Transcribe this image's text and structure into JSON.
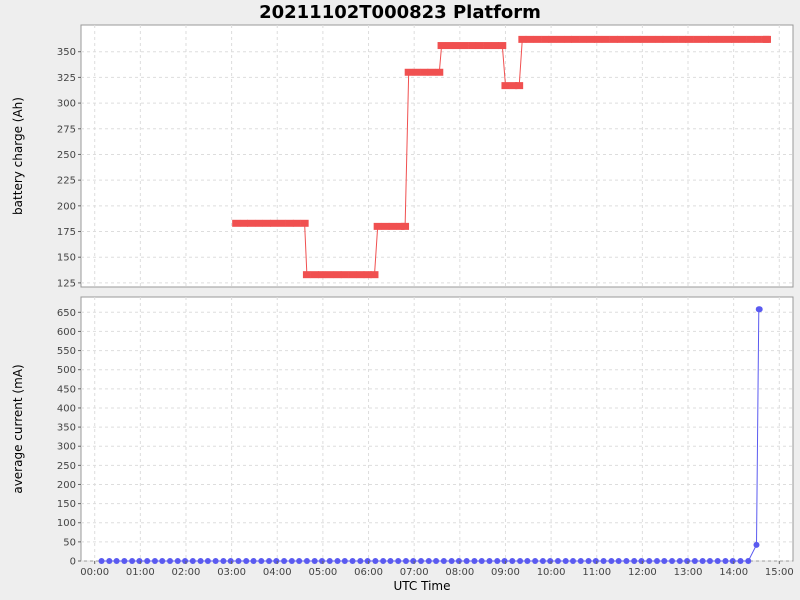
{
  "chart_data": {
    "title": "20211102T000823 Platform",
    "type": "line",
    "x_axis": {
      "label": "UTC Time",
      "unit": "hours",
      "range": [
        -0.3,
        15.3
      ],
      "ticks": [
        0,
        1,
        2,
        3,
        4,
        5,
        6,
        7,
        8,
        9,
        10,
        11,
        12,
        13,
        14,
        15
      ],
      "tick_labels": [
        "00:00",
        "01:00",
        "02:00",
        "03:00",
        "04:00",
        "05:00",
        "06:00",
        "07:00",
        "08:00",
        "09:00",
        "10:00",
        "11:00",
        "12:00",
        "13:00",
        "14:00",
        "15:00"
      ]
    },
    "grid": true,
    "panels": [
      {
        "ylabel": "battery charge (Ah)",
        "ylim": [
          121,
          376
        ],
        "yticks": [
          125,
          150,
          175,
          200,
          225,
          250,
          275,
          300,
          325,
          350
        ],
        "series": [
          {
            "color": "#f05050",
            "marker": "square",
            "points": [
              [
                3.1,
                183
              ],
              [
                3.27,
                183
              ],
              [
                3.43,
                183
              ],
              [
                3.6,
                183
              ],
              [
                3.77,
                183
              ],
              [
                3.93,
                183
              ],
              [
                4.1,
                183
              ],
              [
                4.27,
                183
              ],
              [
                4.43,
                183
              ],
              [
                4.6,
                183
              ],
              [
                4.65,
                133
              ],
              [
                4.82,
                133
              ],
              [
                4.98,
                133
              ],
              [
                5.15,
                133
              ],
              [
                5.32,
                133
              ],
              [
                5.48,
                133
              ],
              [
                5.65,
                133
              ],
              [
                5.82,
                133
              ],
              [
                5.98,
                133
              ],
              [
                6.13,
                133
              ],
              [
                6.2,
                180
              ],
              [
                6.37,
                180
              ],
              [
                6.53,
                180
              ],
              [
                6.7,
                180
              ],
              [
                6.8,
                180
              ],
              [
                6.88,
                330
              ],
              [
                7.05,
                330
              ],
              [
                7.22,
                330
              ],
              [
                7.38,
                330
              ],
              [
                7.55,
                330
              ],
              [
                7.6,
                356
              ],
              [
                7.77,
                356
              ],
              [
                7.93,
                356
              ],
              [
                8.1,
                356
              ],
              [
                8.27,
                356
              ],
              [
                8.43,
                356
              ],
              [
                8.6,
                356
              ],
              [
                8.77,
                356
              ],
              [
                8.93,
                356
              ],
              [
                9.0,
                317
              ],
              [
                9.17,
                317
              ],
              [
                9.3,
                317
              ],
              [
                9.37,
                362
              ],
              [
                9.53,
                362
              ],
              [
                9.7,
                362
              ],
              [
                9.87,
                362
              ],
              [
                10.03,
                362
              ],
              [
                10.2,
                362
              ],
              [
                10.37,
                362
              ],
              [
                10.53,
                362
              ],
              [
                10.7,
                362
              ],
              [
                10.87,
                362
              ],
              [
                11.03,
                362
              ],
              [
                11.2,
                362
              ],
              [
                11.37,
                362
              ],
              [
                11.53,
                362
              ],
              [
                11.7,
                362
              ],
              [
                11.87,
                362
              ],
              [
                12.03,
                362
              ],
              [
                12.2,
                362
              ],
              [
                12.37,
                362
              ],
              [
                12.53,
                362
              ],
              [
                12.7,
                362
              ],
              [
                12.87,
                362
              ],
              [
                13.03,
                362
              ],
              [
                13.2,
                362
              ],
              [
                13.37,
                362
              ],
              [
                13.53,
                362
              ],
              [
                13.7,
                362
              ],
              [
                13.87,
                362
              ],
              [
                14.03,
                362
              ],
              [
                14.2,
                362
              ],
              [
                14.37,
                362
              ],
              [
                14.53,
                362
              ],
              [
                14.7,
                362
              ],
              [
                14.73,
                362
              ]
            ]
          }
        ]
      },
      {
        "ylabel": "average current (mA)",
        "ylim": [
          0,
          690
        ],
        "yticks": [
          0,
          50,
          100,
          150,
          200,
          250,
          300,
          350,
          400,
          450,
          500,
          550,
          600,
          650
        ],
        "series": [
          {
            "color": "#5a5af0",
            "marker": "circle",
            "points": [
              [
                0.15,
                0
              ],
              [
                0.32,
                0
              ],
              [
                0.48,
                0
              ],
              [
                0.65,
                0
              ],
              [
                0.82,
                0
              ],
              [
                0.98,
                0
              ],
              [
                1.15,
                0
              ],
              [
                1.32,
                0
              ],
              [
                1.48,
                0
              ],
              [
                1.65,
                0
              ],
              [
                1.82,
                0
              ],
              [
                1.98,
                0
              ],
              [
                2.15,
                0
              ],
              [
                2.32,
                0
              ],
              [
                2.48,
                0
              ],
              [
                2.65,
                0
              ],
              [
                2.82,
                0
              ],
              [
                2.98,
                0
              ],
              [
                3.15,
                0
              ],
              [
                3.32,
                0
              ],
              [
                3.48,
                0
              ],
              [
                3.65,
                0
              ],
              [
                3.82,
                0
              ],
              [
                3.98,
                0
              ],
              [
                4.15,
                0
              ],
              [
                4.32,
                0
              ],
              [
                4.48,
                0
              ],
              [
                4.65,
                0
              ],
              [
                4.82,
                0
              ],
              [
                4.98,
                0
              ],
              [
                5.15,
                0
              ],
              [
                5.32,
                0
              ],
              [
                5.48,
                0
              ],
              [
                5.65,
                0
              ],
              [
                5.82,
                0
              ],
              [
                5.98,
                0
              ],
              [
                6.15,
                0
              ],
              [
                6.32,
                0
              ],
              [
                6.48,
                0
              ],
              [
                6.65,
                0
              ],
              [
                6.82,
                0
              ],
              [
                6.98,
                0
              ],
              [
                7.15,
                0
              ],
              [
                7.32,
                0
              ],
              [
                7.48,
                0
              ],
              [
                7.65,
                0
              ],
              [
                7.82,
                0
              ],
              [
                7.98,
                0
              ],
              [
                8.15,
                0
              ],
              [
                8.32,
                0
              ],
              [
                8.48,
                0
              ],
              [
                8.65,
                0
              ],
              [
                8.82,
                0
              ],
              [
                8.98,
                0
              ],
              [
                9.15,
                0
              ],
              [
                9.32,
                0
              ],
              [
                9.48,
                0
              ],
              [
                9.65,
                0
              ],
              [
                9.82,
                0
              ],
              [
                9.98,
                0
              ],
              [
                10.15,
                0
              ],
              [
                10.32,
                0
              ],
              [
                10.48,
                0
              ],
              [
                10.65,
                0
              ],
              [
                10.82,
                0
              ],
              [
                10.98,
                0
              ],
              [
                11.15,
                0
              ],
              [
                11.32,
                0
              ],
              [
                11.48,
                0
              ],
              [
                11.65,
                0
              ],
              [
                11.82,
                0
              ],
              [
                11.98,
                0
              ],
              [
                12.15,
                0
              ],
              [
                12.32,
                0
              ],
              [
                12.48,
                0
              ],
              [
                12.65,
                0
              ],
              [
                12.82,
                0
              ],
              [
                12.98,
                0
              ],
              [
                13.15,
                0
              ],
              [
                13.32,
                0
              ],
              [
                13.48,
                0
              ],
              [
                13.65,
                0
              ],
              [
                13.82,
                0
              ],
              [
                13.98,
                0
              ],
              [
                14.15,
                0
              ],
              [
                14.32,
                0
              ],
              [
                14.5,
                42
              ],
              [
                14.55,
                658
              ],
              [
                14.57,
                658
              ]
            ]
          }
        ]
      }
    ]
  }
}
